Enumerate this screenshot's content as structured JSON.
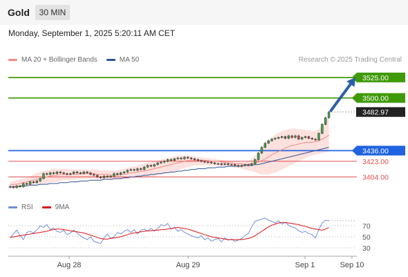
{
  "header": {
    "symbol": "Gold",
    "timeframe": "30 MIN"
  },
  "timestamp": "Monday, September 1, 2025 5:20:11 AM CET",
  "legend": {
    "items": [
      {
        "label": "MA 20 + Bollinger Bands",
        "color": "#f28b82"
      },
      {
        "label": "MA 50",
        "color": "#2f5597"
      }
    ],
    "credit": "Research © 2025 Trading Central"
  },
  "rsi_legend": {
    "items": [
      {
        "label": "RSI",
        "color": "#6f8fd8"
      },
      {
        "label": "9MA",
        "color": "#e01010"
      }
    ]
  },
  "chart_data": [
    {
      "type": "line",
      "title": "",
      "subtitle": "",
      "price_axis": {
        "ylim": [
          3385,
          3535
        ]
      },
      "x_labels": [
        "Aug 28",
        "Aug 29",
        "Sep 1",
        "Sep 10"
      ],
      "levels": [
        {
          "value": 3525.0,
          "label": "3525.00",
          "color": "#3f9a08",
          "style": "resistance"
        },
        {
          "value": 3500.0,
          "label": "3500.00",
          "color": "#3f9a08",
          "style": "resistance"
        },
        {
          "value": 3482.97,
          "label": "3482.97",
          "color": "#222222",
          "style": "last-price"
        },
        {
          "value": 3436.0,
          "label": "3436.00",
          "color": "#1f63e0",
          "style": "pivot"
        },
        {
          "value": 3423.0,
          "label": "3423.00",
          "color": "#e05050",
          "style": "support"
        },
        {
          "value": 3404.0,
          "label": "3404.00",
          "color": "#e05050",
          "style": "support"
        }
      ],
      "forecast_target": 3525.0,
      "series": [
        {
          "name": "Price",
          "values": [
            3392,
            3391,
            3393,
            3392,
            3396,
            3395,
            3398,
            3397,
            3399,
            3402,
            3408,
            3407,
            3409,
            3408,
            3410,
            3409,
            3408,
            3407,
            3408,
            3410,
            3409,
            3408,
            3410,
            3409,
            3407,
            3406,
            3404,
            3403,
            3405,
            3404,
            3405,
            3408,
            3407,
            3409,
            3410,
            3412,
            3413,
            3412,
            3414,
            3413,
            3416,
            3418,
            3417,
            3419,
            3421,
            3422,
            3423,
            3425,
            3424,
            3426,
            3427,
            3426,
            3428,
            3427,
            3426,
            3425,
            3424,
            3423,
            3422,
            3422,
            3421,
            3420,
            3420,
            3419,
            3420,
            3419,
            3419,
            3418,
            3417,
            3418,
            3419,
            3418,
            3420,
            3425,
            3433,
            3440,
            3445,
            3448,
            3450,
            3451,
            3452,
            3453,
            3451,
            3454,
            3452,
            3454,
            3450,
            3452,
            3453,
            3451,
            3450,
            3449,
            3457,
            3468,
            3476,
            3483
          ]
        },
        {
          "name": "MA 20",
          "values": [
            3394,
            3395,
            3395,
            3396,
            3397,
            3398,
            3399,
            3400,
            3401,
            3402,
            3403,
            3404,
            3405,
            3406,
            3406,
            3407,
            3407,
            3407,
            3407,
            3407,
            3407,
            3408,
            3408,
            3408,
            3408,
            3408,
            3407,
            3407,
            3407,
            3407,
            3406,
            3406,
            3406,
            3407,
            3407,
            3408,
            3409,
            3409,
            3410,
            3411,
            3411,
            3412,
            3413,
            3414,
            3415,
            3416,
            3417,
            3418,
            3419,
            3420,
            3421,
            3422,
            3423,
            3424,
            3424,
            3424,
            3424,
            3424,
            3424,
            3424,
            3423,
            3423,
            3423,
            3422,
            3422,
            3421,
            3421,
            3420,
            3420,
            3420,
            3419,
            3419,
            3420,
            3421,
            3422,
            3424,
            3426,
            3428,
            3431,
            3433,
            3435,
            3437,
            3439,
            3441,
            3442,
            3443,
            3444,
            3445,
            3446,
            3446,
            3446,
            3447,
            3448,
            3450,
            3452,
            3455
          ]
        },
        {
          "name": "Upper Bollinger Band",
          "values": [
            3398,
            3399,
            3400,
            3401,
            3402,
            3403,
            3405,
            3407,
            3409,
            3410,
            3411,
            3412,
            3413,
            3414,
            3414,
            3414,
            3414,
            3414,
            3413,
            3413,
            3413,
            3413,
            3413,
            3413,
            3413,
            3413,
            3413,
            3412,
            3412,
            3412,
            3412,
            3412,
            3412,
            3413,
            3414,
            3415,
            3416,
            3417,
            3418,
            3419,
            3420,
            3421,
            3422,
            3423,
            3424,
            3425,
            3426,
            3427,
            3428,
            3429,
            3430,
            3430,
            3430,
            3430,
            3429,
            3429,
            3428,
            3428,
            3427,
            3427,
            3426,
            3426,
            3425,
            3425,
            3424,
            3424,
            3423,
            3423,
            3423,
            3422,
            3422,
            3423,
            3426,
            3430,
            3435,
            3440,
            3444,
            3448,
            3452,
            3455,
            3458,
            3460,
            3461,
            3462,
            3463,
            3463,
            3462,
            3462,
            3461,
            3461,
            3460,
            3460,
            3462,
            3466,
            3471,
            3477
          ]
        },
        {
          "name": "Lower Bollinger Band",
          "values": [
            3389,
            3390,
            3390,
            3391,
            3392,
            3393,
            3394,
            3394,
            3395,
            3395,
            3396,
            3396,
            3397,
            3398,
            3398,
            3399,
            3400,
            3400,
            3400,
            3401,
            3401,
            3402,
            3402,
            3402,
            3402,
            3402,
            3401,
            3401,
            3401,
            3401,
            3400,
            3400,
            3401,
            3401,
            3401,
            3401,
            3402,
            3402,
            3403,
            3403,
            3403,
            3404,
            3404,
            3405,
            3406,
            3407,
            3408,
            3409,
            3410,
            3411,
            3412,
            3413,
            3415,
            3416,
            3417,
            3418,
            3418,
            3418,
            3418,
            3418,
            3418,
            3418,
            3418,
            3417,
            3417,
            3416,
            3416,
            3415,
            3415,
            3414,
            3413,
            3412,
            3411,
            3410,
            3408,
            3407,
            3407,
            3407,
            3408,
            3409,
            3411,
            3413,
            3415,
            3417,
            3419,
            3421,
            3423,
            3425,
            3427,
            3429,
            3430,
            3431,
            3432,
            3433,
            3434,
            3435
          ]
        },
        {
          "name": "MA 50",
          "values": [
            3392,
            3392,
            3392,
            3393,
            3393,
            3393,
            3394,
            3394,
            3394,
            3395,
            3395,
            3395,
            3396,
            3396,
            3396,
            3397,
            3397,
            3397,
            3398,
            3398,
            3398,
            3399,
            3399,
            3399,
            3400,
            3400,
            3400,
            3400,
            3401,
            3401,
            3401,
            3402,
            3402,
            3402,
            3403,
            3403,
            3404,
            3404,
            3405,
            3405,
            3406,
            3406,
            3407,
            3407,
            3408,
            3408,
            3409,
            3409,
            3410,
            3410,
            3411,
            3411,
            3412,
            3412,
            3413,
            3413,
            3414,
            3414,
            3414,
            3415,
            3415,
            3415,
            3416,
            3416,
            3416,
            3417,
            3417,
            3417,
            3417,
            3417,
            3418,
            3418,
            3418,
            3419,
            3419,
            3420,
            3421,
            3422,
            3423,
            3424,
            3425,
            3426,
            3427,
            3428,
            3429,
            3430,
            3431,
            3432,
            3433,
            3434,
            3435,
            3436,
            3437,
            3438,
            3439,
            3440
          ]
        }
      ]
    },
    {
      "type": "line",
      "title": "",
      "ylim": [
        20,
        90
      ],
      "y_ticks": [
        70,
        50,
        30
      ],
      "series": [
        {
          "name": "RSI",
          "values": [
            48,
            55,
            62,
            52,
            45,
            58,
            60,
            57,
            62,
            70,
            67,
            72,
            63,
            66,
            60,
            58,
            62,
            54,
            57,
            62,
            57,
            52,
            48,
            45,
            50,
            42,
            40,
            38,
            48,
            55,
            47,
            50,
            58,
            55,
            60,
            63,
            58,
            63,
            55,
            62,
            64,
            60,
            65,
            60,
            65,
            72,
            70,
            74,
            64,
            67,
            60,
            63,
            58,
            55,
            52,
            50,
            48,
            52,
            45,
            48,
            42,
            45,
            47,
            41,
            48,
            44,
            46,
            42,
            44,
            47,
            52,
            56,
            68,
            78,
            80,
            82,
            84,
            80,
            78,
            75,
            79,
            73,
            76,
            71,
            68,
            66,
            61,
            58,
            60,
            56,
            54,
            48,
            63,
            75,
            80,
            79
          ]
        },
        {
          "name": "9MA",
          "values": [
            49,
            50,
            51,
            52,
            53,
            54,
            55,
            56,
            57,
            58,
            59,
            60,
            62,
            63,
            64,
            64,
            63,
            62,
            61,
            60,
            59,
            58,
            57,
            55,
            53,
            51,
            49,
            47,
            46,
            46,
            47,
            48,
            49,
            50,
            52,
            54,
            56,
            57,
            58,
            59,
            60,
            61,
            61,
            62,
            62,
            63,
            63,
            64,
            65,
            66,
            67,
            66,
            65,
            64,
            62,
            60,
            58,
            56,
            54,
            52,
            50,
            49,
            48,
            47,
            46,
            45,
            45,
            45,
            45,
            45,
            46,
            47,
            49,
            52,
            56,
            60,
            64,
            68,
            71,
            73,
            75,
            76,
            76,
            75,
            74,
            73,
            72,
            70,
            69,
            67,
            65,
            64,
            63,
            62,
            64,
            67
          ]
        }
      ]
    }
  ]
}
